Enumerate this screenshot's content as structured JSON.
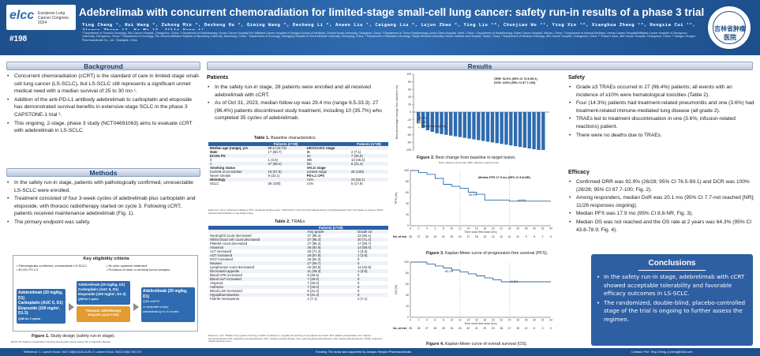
{
  "header": {
    "logo": "elcc",
    "logo_sub": "European Lung Cancer Congress 2024",
    "abstract_no": "#198",
    "title": "Adebrelimab with concurrent chemoradiation for limited-stage small-cell lung cancer: safety run-in results of a phase 3 trial",
    "authors": "Ying Cheng ¹, Hui Wang ², Zuhong Min ³, Desheng Hu ⁴, Qiming Wang ⁵, Desheng Li ⁶, Anwen Liu ⁷, Caigang Liu ⁸, Lujun Zhao ⁹, Ying Liu ¹⁰, Chunjiao Wu ¹¹, Ying Xin ¹², Xianghua Zhang ¹³, Hongxia Cui ¹⁴, Jingyu Zhang ¹⁵, Ke Ma ¹⁶, Jilin Yang ¹⁷",
    "affiliations": "¹ Department of Thoracic Oncology, Jilin Cancer Hospital, Changchun, China; ² Department of Radiotherapy, Hunan Cancer Hospital/The Affiliated Cancer Hospital of Xiangya School of Medicine, Central South University, Changsha, China; ³ Department of Tumor Radiotherapy, Anhui Chest Hospital, Hefei, China; ⁴ Department of Radiotherapy, Hubei Cancer Hospital, Wuhan, China; ⁵ Department of Internal Medicine, Henan Cancer Hospital/Affiliated Cancer Hospital of Zhengzhou University, Zhengzhou, China; ⁶ Department of Oncology, The Second Affiliated Hospital of Nanchang University, Nanchang, China; ⁷ Department of Oncology, Shengjing Hospital of China Medical University, Shenyang, China; ⁸ Department of Radiation Oncology, Tianjin Medical University Cancer Institute and Hospital, Tianjin, China; ⁹ Department of Medical Oncology, Jilin Cancer Hospital, Changchun, China; ¹⁰ Phase I ward, Jilin Cancer Hospital, Changchun, China; ¹¹ Jiangsu Hengrui Pharmaceuticals Co., Ltd., Shanghai, China",
    "seal": "吉林省肿瘤医院"
  },
  "left": {
    "background_title": "Background",
    "background": [
      "Concurrent chemoradiation (cCRT) is the standard of care in limited-stage small-cell lung cancer (LS-SCLC), but LS-SCLC still represents a significant unmet medical need with a median survival of 25 to 30 mo ¹.",
      "Addition of the anti-PD-L1 antibody adebrelimab to carboplatin and etoposide has demonstrated survival benefits in extensive-stage SCLC in the phase 3 CAPSTONE-1 trial ².",
      "This ongoing, 2-stage, phase 3 study (NCT04691063) aims to evaluate cCRT with adebrelimab in LS-SCLC."
    ],
    "methods_title": "Methods",
    "methods": [
      "In the safety run-in stage, patients with pathologically confirmed, unresectable LS-SCLC were enrolled.",
      "Treatment consisted of four 3-week cycles of adebrelimab plus carboplatin and etoposide, with thoracic radiotherapy started on cycle 3. Following cCRT, patients received maintenance adebrelimab (Fig. 1).",
      "The primary endpoint was safety."
    ],
    "eligibility": {
      "title": "Key eligibility criteria",
      "c1": "• Pathologically confirmed, unresectable LS-SCLC",
      "c2": "• ECOG PS 0-1",
      "c3": "• No prior systemic treatment",
      "c4": "• Provision of fresh or archival tumor samples"
    },
    "study_design": {
      "induction": [
        "Adebrelimab (20 mg/kg, D1)",
        "Carboplatin (AUC 5, D1)",
        "Etoposide (100 mg/m², D1-3)",
        "Q3W for 2 cycles"
      ],
      "concurrent": [
        "Adebrelimab (20 mg/kg, D1)",
        "Carboplatin (AUC 5, D1)",
        "Etoposide (100 mg/m², D1-3)",
        "Q3W for 2 cycles"
      ],
      "radiotherapy": "Thoracic radiotherapy",
      "radiotherapy_dose": "60Gy/30Fr (Q1W 5 D/W)",
      "maintenance": [
        "Adebrelimab (20 mg/kg, D1)",
        "Q3W until PD",
        "or intolerable toxicity;",
        "adebrelimab up to 24 months"
      ]
    },
    "fig1_caption": "Figure 1.",
    "fig1_text": " Study design (safety run-in stage).",
    "fig1_note": "ECOG PS, Eastern Cooperative Oncology Group performance status; PD, progressive disease."
  },
  "results": {
    "title": "Results",
    "patients_title": "Patients",
    "patients": [
      "In the safety run-in stage, 28 patients were enrolled and all received adebrelimab with cCRT.",
      "As of Oct 31, 2023, median follow-up was 29.4 mo (range 6.5-33.3). 27 (96.4%) patients discontinued study treatment, including 10 (35.7%) who completed 35 cycles of adebrelimab."
    ],
    "table1_caption": "Table 1.",
    "table1_text": " Baseline characteristics",
    "table1_header": [
      "",
      "Patients (n=28)",
      "",
      "Patients (n=28)"
    ],
    "table1_rows": [
      [
        "Median age (range), yrs",
        "58.5 (34-73)",
        "UICC/AJCC stage",
        ""
      ],
      [
        "Male",
        "17 (60.7)",
        "IB",
        "2 (7.1)"
      ],
      [
        "ECOG PS",
        "",
        "IIA",
        "7 (25.0)"
      ],
      [
        "0",
        "1 (3.6)",
        "IIIB",
        "13 (46.4)"
      ],
      [
        "1",
        "27 (96.4)",
        "IIIC",
        "6 (21.4)"
      ],
      [
        "Smoking status",
        "",
        "VALG stage",
        ""
      ],
      [
        "Current or ex-smoker",
        "19 (67.9)",
        "Limited stage",
        "28 (100)"
      ],
      [
        "Never smoker",
        "9 (32.1)",
        "PD-L1 CPS",
        ""
      ],
      [
        "Histology",
        "",
        "<1%",
        "23 (82.1)"
      ],
      [
        "SCLC",
        "28 (100)",
        "≥1%",
        "5 (17.9)"
      ]
    ],
    "table1_note": "Data are n (%) or otherwise indicated. CPS, combined positive score; UICC/AJCC, Union for International Cancer Control/American Joint Committee on Cancer; VALG, Veterans Administration Lung Study Group.",
    "table2_caption": "Table 2.",
    "table2_text": " TRAEs",
    "table2_header": [
      "",
      "Patients (n=28)",
      ""
    ],
    "table2_sub": [
      "",
      "Any grade",
      "Grade ≥3"
    ],
    "table2_rows": [
      [
        "Neutrophil count decreased",
        "27 (96.4)",
        "23 (82.1)"
      ],
      [
        "White blood cell count decreased",
        "27 (96.4)",
        "20 (71.4)"
      ],
      [
        "Platelet count decreased",
        "27 (96.4)",
        "17 (60.7)"
      ],
      [
        "Anaemia",
        "26 (92.9)",
        "14 (50.0)"
      ],
      [
        "ALT increased",
        "20 (71.4)",
        "1 (3.6)"
      ],
      [
        "AST increased",
        "19 (67.9)",
        "1 (3.6)"
      ],
      [
        "GGT increased",
        "18 (64.3)",
        "0"
      ],
      [
        "Nausea",
        "17 (60.7)",
        "0"
      ],
      [
        "Lymphocyte count decreased",
        "15 (53.6)",
        "12 (42.9)"
      ],
      [
        "Decreased appetite",
        "11 (39.3)",
        "1 (3.6)"
      ],
      [
        "Blood CPK increased",
        "8 (28.6)",
        "0"
      ],
      [
        "Blood ALP increased",
        "7 (25.0)",
        "0"
      ],
      [
        "Alopecia",
        "7 (25.0)",
        "0"
      ],
      [
        "Asthenia",
        "7 (25.0)",
        "0"
      ],
      [
        "Blood LDH increased",
        "6 (21.4)",
        "0"
      ],
      [
        "Hypoalbuminaemia",
        "6 (21.4)",
        "0"
      ],
      [
        "Febrile neutropenia",
        "2 (7.1)",
        "2 (7.1)"
      ]
    ],
    "table2_note": "Data are n (%). TRAEs of any grade occurring in ≥20% of patients or of grade ≥3 occurring in ≥2 patients are listed. ALP, alkaline phosphatase; ALT, alanine aminotransferase; AST, aspartate aminotransferase; CPK, creatine phosphokinase; GGT, gamma-glutamyltransferase; LDH, lactate dehydrogenase; TRAE, treatment-related adverse event.",
    "fig2_caption": "Figure 2.",
    "fig2_text": " Best change from baseline in target lesion.",
    "fig2_note": "DCR, disease control rate; ORR, objective response rate.",
    "fig3_caption": "Figure 3.",
    "fig3_text": " Kaplan-Meier curve of progression-free survival (PFS).",
    "fig4_caption": "Figure 4.",
    "fig4_text": " Kaplan-Meier curve of overall survival (OS).",
    "safety_title": "Safety",
    "safety": [
      "Grade ≥3 TRAEs occurred in 27 (96.4%) patients; all events with an incidence of ≥10% were hematological toxicities (Table 2).",
      "Four (14.3%) patients had treatment-related pneumonitis and one (3.6%) had treatment-related immune-mediated lung disease (all grade 2).",
      "TRAEs led to treatment discontinuation in one (3.6%; infusion-related reactions) patient.",
      "There were no deaths due to TRAEs."
    ],
    "efficacy_title": "Efficacy",
    "efficacy": [
      "Confirmed ORR was 92.9% (26/28; 95% CI 76.5-99.1) and DCR was 100% (28/28; 95% CI 87.7-100; Fig. 2).",
      "Among responders, median DoR was 20.1 mo (95% CI 7.7-not reached [NR]; 11/26 responses ongoing).",
      "Median PFS was 17.9 mo (95% CI 8.8-NR; Fig. 3).",
      "Median OS was not reached and the OS rate at 2 years was 64.3% (95% CI 43.8-78.9; Fig. 4)."
    ],
    "conclusions_title": "Conclusions",
    "conclusions": [
      "In the safety run-in stage, adebrelimab with cCRT showed acceptable tolerability and favorable efficacy outcomes in LS-SCLC.",
      "The randomized, double-blind, placebo-controlled stage of the trial is ongoing to further assess the regimen."
    ]
  },
  "footer": {
    "references": "Reference: 1. Lancet Oncol. 2017;18(8):1116-1125. 2. Lancet Oncol. 2022;23(6):739-747.",
    "funding": "Funding: The study was supported by Jiangsu Hengrui Pharmaceuticals.",
    "contact": "Contact: Prof. Ying Cheng, jl.cheng@163.com"
  },
  "chart_data": [
    {
      "type": "bar",
      "title": "Figure 2. Best change from baseline in target lesion.",
      "ylabel": "Best percentage change from baseline (%)",
      "ylim": [
        -100,
        100
      ],
      "yticks": [
        100,
        80,
        60,
        40,
        20,
        0,
        -20,
        -40,
        -60,
        -80,
        -100
      ],
      "values": [
        -30,
        -42,
        -48,
        -52,
        -56,
        -58,
        -60,
        -62,
        -64,
        -66,
        -68,
        -70,
        -72,
        -74,
        -76,
        -78,
        -80,
        -82,
        -84,
        -86,
        -88,
        -90,
        -92,
        -94,
        -96,
        -98,
        -100,
        -100
      ],
      "legend": [
        "PR",
        "SD",
        "Treatment ongoing"
      ],
      "annotations": [
        "ORR: 92.9% (95% CI 76.5-99.1)",
        "DCR: 100% (95% CI 87.7-100)"
      ]
    },
    {
      "type": "line",
      "title": "Figure 3. Kaplan-Meier curve of progression-free survival (PFS).",
      "ylabel": "PFS (%)",
      "xlabel": "Time since first dose (mo)",
      "ylim": [
        0,
        100
      ],
      "yticks": [
        0,
        20,
        40,
        60,
        80,
        100
      ],
      "xlim": [
        0,
        34
      ],
      "x": [
        0,
        2,
        4,
        6,
        8,
        10,
        12,
        14,
        16,
        18,
        20,
        22,
        24,
        26,
        28,
        30,
        32,
        34
      ],
      "y": [
        100,
        96.4,
        92.9,
        85.7,
        75,
        71.4,
        67.9,
        60.7,
        57.1,
        46.4,
        46.4,
        46.4,
        44.6,
        44.6,
        44.6,
        44.6,
        44.6,
        44.6
      ],
      "annotations": [
        "Median PFS 17.9 mo (95% CI 8.8-NR)",
        "55.0%",
        "44.6%"
      ],
      "at_risk_label": "No. at risk",
      "at_risk": [
        "28",
        "27",
        "26",
        "24",
        "21",
        "20",
        "19",
        "17",
        "16",
        "13",
        "12",
        "12",
        "11",
        "11",
        "9",
        "6",
        "2",
        "0"
      ]
    },
    {
      "type": "line",
      "title": "Figure 4. Kaplan-Meier curve of overall survival (OS).",
      "ylabel": "OS (%)",
      "xlabel": "Time since first dose (mo)",
      "ylim": [
        0,
        100
      ],
      "yticks": [
        0,
        20,
        40,
        60,
        80,
        100
      ],
      "xlim": [
        0,
        34
      ],
      "x": [
        0,
        2,
        4,
        6,
        8,
        10,
        12,
        14,
        16,
        18,
        20,
        22,
        24,
        26,
        28,
        30,
        32,
        34
      ],
      "y": [
        100,
        100,
        96.4,
        92.9,
        89.3,
        85.7,
        82.1,
        78.6,
        75,
        71.4,
        67.9,
        64.3,
        64.3,
        64.3,
        64.3,
        64.3,
        64.3,
        64.3
      ],
      "annotations": [
        "82.1%",
        "64.3%"
      ],
      "at_risk_label": "No. at risk",
      "at_risk": [
        "28",
        "28",
        "27",
        "26",
        "25",
        "24",
        "23",
        "22",
        "21",
        "20",
        "19",
        "18",
        "17",
        "15",
        "12",
        "8",
        "3",
        "0"
      ]
    }
  ]
}
